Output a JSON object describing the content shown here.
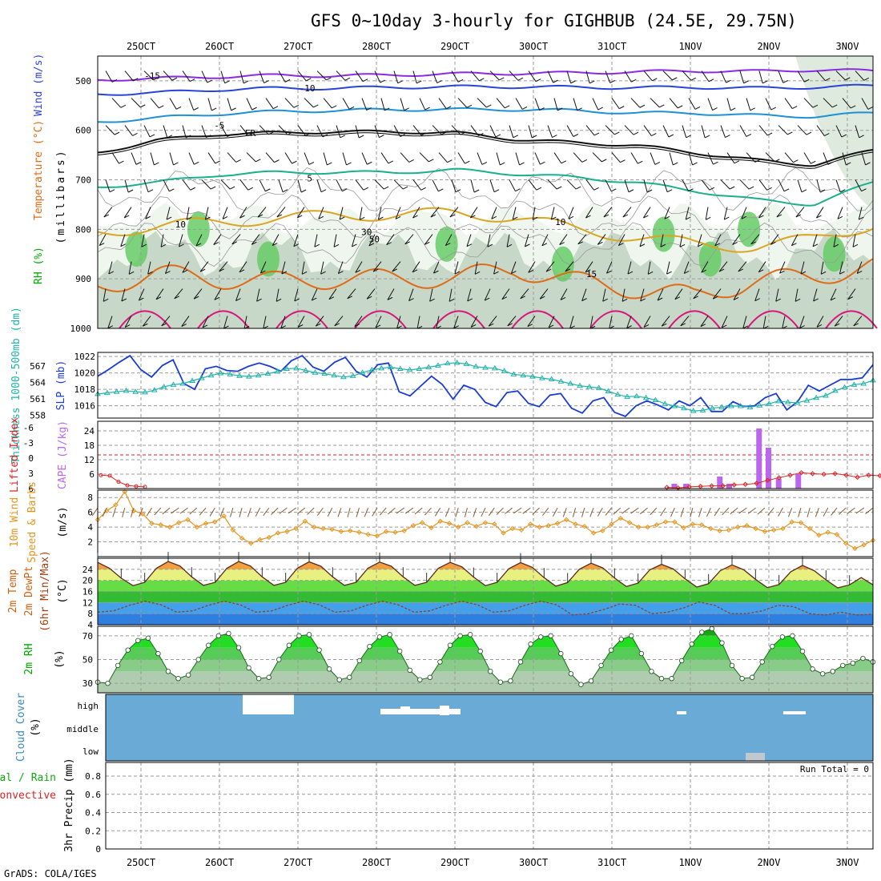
{
  "title": "GFS 0~10day 3-hourly for GIGHBUB (24.5E, 29.75N)",
  "source_label": "GrADS: COLA/IGES",
  "dates": [
    "25OCT",
    "26OCT",
    "27OCT",
    "28OCT",
    "29OCT",
    "30OCT",
    "31OCT",
    "1NOV",
    "2NOV",
    "3NOV"
  ],
  "colors": {
    "rh_light": "#eef6ee",
    "rh_mid": "#b8ccb8",
    "rh_green": "#66cc66",
    "slp_line": "#1a3cd6",
    "thickness_line": "#20b2aa",
    "cape_bar": "#bb66ee",
    "lifted_index": "#dd2222",
    "wind_speed": "#e69520",
    "wind_barb": "#8b5a2b",
    "cloud_fill": "#6aaad6",
    "cloud_gap": "#ffffff"
  },
  "chart_data": [
    {
      "type": "area",
      "panel": "cross-section",
      "ylabel_parts": [
        "RH (%)",
        "Temperature (°C)",
        "Wind (m/s)"
      ],
      "ylabel_units": "(millibars)",
      "y_ticks": [
        "500",
        "600",
        "700",
        "800",
        "900",
        "1000"
      ],
      "ylim": [
        1000,
        450
      ],
      "series": [
        {
          "name": "-15",
          "p": [
            498,
            495,
            492,
            489,
            490,
            488,
            486,
            485,
            484,
            482,
            480,
            481,
            478,
            480
          ]
        },
        {
          "name": "-10",
          "p": [
            527,
            524,
            518,
            515,
            515,
            513,
            512,
            512,
            513,
            514,
            513,
            515,
            513,
            510
          ]
        },
        {
          "name": "-5",
          "p": [
            583,
            575,
            567,
            562,
            560,
            558,
            558,
            558,
            560,
            565,
            565,
            570,
            572,
            565
          ]
        },
        {
          "name": "FR",
          "p": [
            645,
            620,
            608,
            605,
            603,
            603,
            605,
            618,
            625,
            630,
            645,
            660,
            670,
            640
          ]
        },
        {
          "name": "5",
          "p": [
            715,
            705,
            690,
            685,
            685,
            685,
            680,
            688,
            695,
            705,
            722,
            740,
            750,
            705
          ]
        },
        {
          "name": "10",
          "p": [
            805,
            795,
            785,
            778,
            772,
            770,
            768,
            775,
            800,
            815,
            830,
            835,
            820,
            790
          ]
        },
        {
          "name": "15",
          "p": [
            915,
            890,
            900,
            905,
            900,
            900,
            898,
            880,
            905,
            920,
            935,
            905,
            895,
            875
          ]
        }
      ],
      "contour_labels": [
        "-15",
        "-10",
        "-5",
        "FR",
        "5",
        "10",
        "15",
        "10",
        "30",
        "50"
      ]
    },
    {
      "type": "line",
      "panel": "slp-thickness",
      "ylabel_left": "Thickness 1000-500mb (dm)",
      "ylabel_right": "SLP (mb)",
      "thickness_ticks": [
        "567",
        "564",
        "561",
        "558"
      ],
      "slp_ticks": [
        "1022",
        "1020",
        "1018",
        "1016"
      ],
      "slp_ylim": [
        1014.5,
        1022.5
      ],
      "thickness_ylim": [
        557.5,
        569.5
      ],
      "series": [
        {
          "name": "SLP (mb)",
          "values": [
            1019.6,
            1020.4,
            1021.3,
            1022.1,
            1020.4,
            1019.5,
            1020.9,
            1021.6,
            1018.7,
            1018.0,
            1020.5,
            1020.8,
            1020.3,
            1020.2,
            1020.8,
            1021.2,
            1020.8,
            1020.2,
            1021.5,
            1022.1,
            1020.7,
            1020.2,
            1021.3,
            1021.9,
            1020.2,
            1019.5,
            1021.0,
            1021.2,
            1017.7,
            1017.2,
            1018.4,
            1019.6,
            1018.6,
            1016.8,
            1018.5,
            1018.0,
            1016.4,
            1015.9,
            1017.6,
            1017.8,
            1016.3,
            1015.9,
            1017.3,
            1017.5,
            1015.7,
            1015.1,
            1016.6,
            1017.0,
            1015.2,
            1014.7,
            1016.0,
            1016.6,
            1016.1,
            1015.5,
            1016.6,
            1016.0,
            1017.0,
            1015.3,
            1015.3,
            1016.5,
            1015.9,
            1016.0,
            1017.0,
            1017.5,
            1015.5,
            1016.5,
            1018.5,
            1017.8,
            1018.5,
            1019.2,
            1019.2,
            1019.4,
            1021.0
          ]
        },
        {
          "name": "Thickness (dm)",
          "values": [
            561.9,
            562.1,
            562.3,
            562.5,
            562.3,
            562.2,
            562.6,
            563.2,
            563.6,
            563.8,
            564.3,
            564.8,
            565.3,
            565.7,
            565.5,
            565.2,
            565.1,
            565.3,
            565.6,
            566.0,
            566.5,
            566.6,
            566.2,
            565.8,
            565.6,
            565.3,
            565.0,
            565.2,
            565.8,
            566.3,
            566.6,
            566.8,
            566.5,
            566.3,
            566.5,
            566.8,
            567.1,
            567.5,
            567.6,
            567.4,
            566.9,
            566.7,
            566.6,
            566.1,
            565.5,
            565.3,
            565.1,
            564.8,
            564.6,
            564.2,
            563.8,
            563.4,
            563.2,
            563.0,
            562.4,
            561.8,
            561.4,
            561.5,
            561.2,
            560.8,
            560.1,
            559.7,
            559.3,
            558.8,
            558.9,
            559.3,
            559.5,
            559.7,
            559.7,
            559.5,
            559.8,
            560.1,
            560.6,
            560.4,
            560.3,
            560.7,
            561.2,
            561.6,
            562.5,
            563.1,
            563.6,
            563.8,
            564.4
          ]
        }
      ]
    },
    {
      "type": "bar",
      "panel": "cape-li",
      "ylabel_left": "Lifted Index",
      "ylabel_right": "CAPE (J/kg)",
      "li_ticks": [
        "-6",
        "-3",
        "0",
        "3",
        "6"
      ],
      "cape_ticks": [
        "24",
        "18",
        "12",
        "6"
      ],
      "cape_ylim": [
        0,
        28
      ],
      "cape_bars": [
        {
          "t": 6.8,
          "value": 2
        },
        {
          "t": 6.95,
          "value": 2
        },
        {
          "t": 7.38,
          "value": 5
        },
        {
          "t": 7.5,
          "value": 2
        },
        {
          "t": 7.88,
          "value": 25
        },
        {
          "t": 8.0,
          "value": 17
        },
        {
          "t": 8.13,
          "value": 4
        },
        {
          "t": 8.38,
          "value": 6
        }
      ],
      "li_values": [
        4.0,
        4.1,
        5.3,
        6.0,
        6.2,
        6.3,
        6.4,
        6.5,
        6.3,
        6.2,
        6.1,
        6.1,
        5.9,
        5.8,
        5.6,
        5.0,
        4.5,
        4.0,
        3.5,
        3.7,
        3.8,
        3.7,
        4.0,
        4.4,
        4.0,
        4.1,
        4.5,
        5.0,
        5.1,
        5.4,
        5.8
      ]
    },
    {
      "type": "line",
      "panel": "wind-10m",
      "ylabel_left": "10m Wind",
      "ylabel_mid": "Speed & Barbs",
      "ylabel_units": "(m/s)",
      "y_ticks": [
        "8",
        "6",
        "4",
        "2"
      ],
      "ylim": [
        0,
        9
      ],
      "series": [
        {
          "name": "Speed",
          "values": [
            5.0,
            6.2,
            7.0,
            8.8,
            6.2,
            5.8,
            4.5,
            4.3,
            4.0,
            4.6,
            5.0,
            4.0,
            4.5,
            4.7,
            5.5,
            3.6,
            2.5,
            1.8,
            2.3,
            2.6,
            3.2,
            3.4,
            3.8,
            4.8,
            4.0,
            3.8,
            3.7,
            3.4,
            3.5,
            3.3,
            3.0,
            2.8,
            3.4,
            3.3,
            3.5,
            4.2,
            4.6,
            3.9,
            4.8,
            4.5,
            4.0,
            4.6,
            4.1,
            4.6,
            4.4,
            3.2,
            3.8,
            3.6,
            4.4,
            4.0,
            4.2,
            4.5,
            5.0,
            4.4,
            4.1,
            3.2,
            3.5,
            4.4,
            5.2,
            4.6,
            4.0,
            4.0,
            4.3,
            4.7,
            4.7,
            3.9,
            4.4,
            4.3,
            3.8,
            3.5,
            3.6,
            4.0,
            4.2,
            3.8,
            3.4,
            3.6,
            3.8,
            4.7,
            4.6,
            3.8,
            2.9,
            3.3,
            3.0,
            1.8,
            1.1,
            1.6,
            2.2
          ]
        }
      ]
    },
    {
      "type": "area",
      "panel": "temperature-2m",
      "ylabel_left": "2m Temp",
      "ylabel_mid": "2m DewPt",
      "ylabel_right": "(6hr Min/Max)",
      "ylabel_units": "(°C)",
      "y_ticks": [
        "24",
        "20",
        "16",
        "12",
        "8",
        "4"
      ],
      "ylim": [
        4,
        28
      ],
      "series": [
        {
          "name": "2m Temp",
          "values": [
            26.5,
            24.4,
            20.8,
            18.1,
            19.3,
            24.4,
            26.8,
            25.2,
            21.3,
            18.2,
            19.3,
            24.4,
            26.8,
            25.2,
            21.3,
            18.2,
            19.3,
            24.4,
            26.7,
            25.1,
            21.3,
            18.2,
            19.3,
            24.4,
            26.6,
            25.1,
            21.3,
            18.2,
            19.3,
            24.4,
            26.5,
            24.9,
            21.2,
            18.1,
            19.3,
            24.2,
            26.4,
            24.7,
            21.0,
            17.9,
            19.2,
            24.0,
            26.2,
            24.5,
            20.9,
            17.8,
            19.0,
            23.8,
            25.8,
            24.1,
            20.6,
            17.6,
            18.8,
            23.5,
            25.6,
            23.8,
            20.4,
            17.4,
            18.5,
            23.1,
            25.4,
            23.5,
            20.2,
            17.3,
            18.4,
            21.0,
            18.4
          ]
        },
        {
          "name": "2m DewPt",
          "values": [
            8.5,
            9.0,
            11.0,
            12.5,
            11.2,
            8.5,
            9.0,
            11.0,
            12.5,
            11.2,
            8.5,
            9.0,
            11.0,
            12.5,
            11.2,
            8.5,
            9.0,
            11.0,
            12.5,
            11.2,
            8.5,
            9.0,
            11.0,
            12.5,
            11.2,
            8.5,
            9.0,
            11.0,
            12.5,
            11.2,
            7.5,
            8.0,
            9.5,
            11.5,
            11.0,
            8.0,
            8.5,
            10.0,
            12.2,
            11.0,
            8.0,
            8.0,
            9.0,
            11.0,
            10.5,
            8.0,
            7.5,
            8.5,
            7.5,
            7.8
          ]
        }
      ]
    },
    {
      "type": "area",
      "panel": "rh-2m",
      "ylabel_left": "2m RH",
      "ylabel_units": "(%)",
      "y_ticks": [
        "70",
        "50",
        "30"
      ],
      "ylim": [
        22,
        78
      ],
      "series": [
        {
          "name": "2m RH",
          "values": [
            31,
            30,
            45,
            58,
            66,
            68,
            55,
            40,
            34,
            37,
            50,
            62,
            70,
            72,
            60,
            43,
            34,
            35,
            50,
            62,
            70,
            71,
            58,
            42,
            33,
            35,
            49,
            61,
            69,
            71,
            57,
            41,
            33,
            35,
            48,
            62,
            70,
            71,
            57,
            40,
            31,
            32,
            48,
            63,
            69,
            70,
            55,
            38,
            29,
            32,
            45,
            58,
            67,
            70,
            55,
            40,
            34,
            34,
            49,
            63,
            73,
            76,
            64,
            45,
            34,
            35,
            48,
            61,
            69,
            70,
            57,
            42,
            38,
            40,
            45,
            47,
            51,
            48
          ]
        }
      ]
    },
    {
      "type": "area",
      "panel": "cloud-cover",
      "ylabel_left": "Cloud Cover",
      "ylabel_units": "(%)",
      "levels": [
        "high",
        "middle",
        "low"
      ]
    },
    {
      "type": "bar",
      "panel": "precip-3hr",
      "ylabel_left": "Total / Rain",
      "ylabel_mid": "Convective",
      "ylabel_right": "3hr Precip (mm)",
      "y_ticks": [
        "0.8",
        "0.6",
        "0.4",
        "0.2",
        "0"
      ],
      "ylim": [
        0,
        0.95
      ],
      "run_total": "Run Total = 0",
      "values": []
    }
  ]
}
